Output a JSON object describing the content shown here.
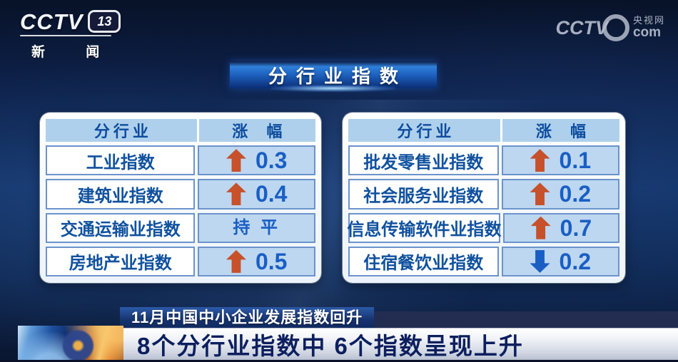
{
  "channel_logo": {
    "cctv": "CCTV",
    "channel_number": "13",
    "channel_name": "新 闻"
  },
  "watermark": {
    "cctv": "CCTV",
    "site_cn": "央视网",
    "site_suffix": "com"
  },
  "page_title": "分行业指数",
  "tables": [
    {
      "headers": {
        "industry": "分行业",
        "change": "涨 幅"
      },
      "rows": [
        {
          "label": "工业指数",
          "direction": "up",
          "value": "0.3"
        },
        {
          "label": "建筑业指数",
          "direction": "up",
          "value": "0.4"
        },
        {
          "label": "交通运输业指数",
          "direction": "flat",
          "value": "持 平"
        },
        {
          "label": "房地产业指数",
          "direction": "up",
          "value": "0.5"
        }
      ]
    },
    {
      "headers": {
        "industry": "分行业",
        "change": "涨 幅"
      },
      "rows": [
        {
          "label": "批发零售业指数",
          "direction": "up",
          "value": "0.1"
        },
        {
          "label": "社会服务业指数",
          "direction": "up",
          "value": "0.2"
        },
        {
          "label": "信息传输软件业指数",
          "direction": "up",
          "value": "0.7"
        },
        {
          "label": "住宿餐饮业指数",
          "direction": "down",
          "value": "0.2"
        }
      ]
    }
  ],
  "captions": {
    "kicker": "11月中国中小企业发展指数回升",
    "headline": "8个分行业指数中 6个指数呈现上升"
  },
  "colors": {
    "up_arrow": "#c6512b",
    "down_arrow": "#1a5ec4",
    "table_text_blue": "#10519f",
    "number_blue": "#1a5ec4",
    "header_cell_bg": "#aed0ec",
    "value_cell_bg": "#bdd7f1",
    "title_bar_blue": "#1f63c2",
    "headline_text": "#0c1f5e"
  },
  "chart_data": {
    "type": "table",
    "title": "分行业指数",
    "columns": [
      "分行业",
      "涨幅"
    ],
    "rows": [
      {
        "industry": "工业指数",
        "direction": "up",
        "change": 0.3
      },
      {
        "industry": "建筑业指数",
        "direction": "up",
        "change": 0.4
      },
      {
        "industry": "交通运输业指数",
        "direction": "flat",
        "change": 0
      },
      {
        "industry": "房地产业指数",
        "direction": "up",
        "change": 0.5
      },
      {
        "industry": "批发零售业指数",
        "direction": "up",
        "change": 0.1
      },
      {
        "industry": "社会服务业指数",
        "direction": "up",
        "change": 0.2
      },
      {
        "industry": "信息传输软件业指数",
        "direction": "up",
        "change": 0.7
      },
      {
        "industry": "住宿餐饮业指数",
        "direction": "down",
        "change": -0.2
      }
    ]
  }
}
